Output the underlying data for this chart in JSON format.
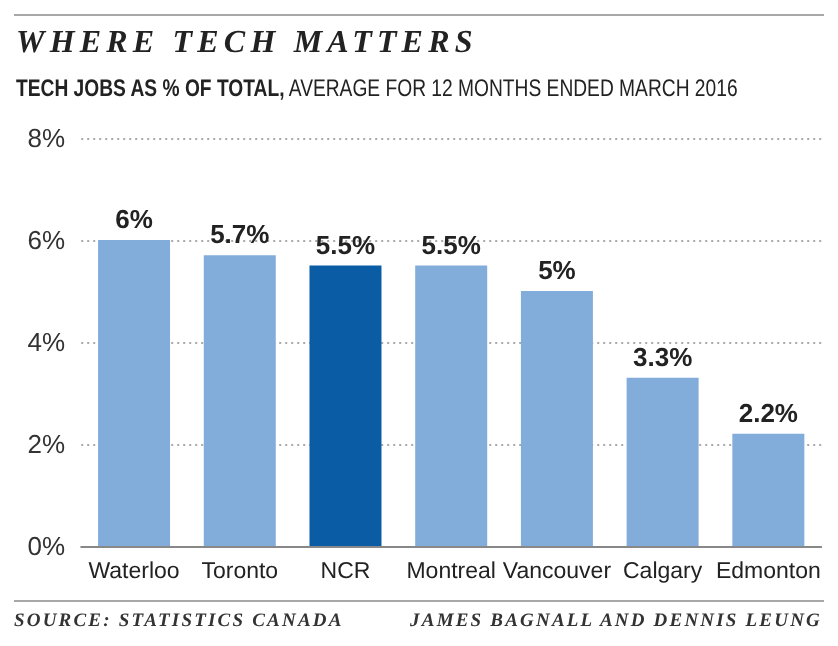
{
  "chart_data": {
    "type": "bar",
    "title": "WHERE TECH MATTERS",
    "subtitle": "TECH JOBS AS % OF TOTAL, AVERAGE FOR 12 MONTHS ENDED MARCH 2016",
    "categories": [
      "Waterloo",
      "Toronto",
      "NCR",
      "Montreal",
      "Vancouver",
      "Calgary",
      "Edmonton"
    ],
    "values": [
      6,
      5.7,
      5.5,
      5.5,
      5,
      3.3,
      2.2
    ],
    "colors": [
      "#82acda",
      "#82acda",
      "#0a5da5",
      "#82acda",
      "#82acda",
      "#82acda",
      "#82acda"
    ],
    "value_labels": [
      "6%",
      "5.7%",
      "5.5%",
      "5.5%",
      "5%",
      "3.3%",
      "2.2%"
    ],
    "ylim": [
      0,
      8
    ],
    "yticks": [
      {
        "value": 0,
        "label": "0%"
      },
      {
        "value": 2,
        "label": "2%"
      },
      {
        "value": 4,
        "label": "4%"
      },
      {
        "value": 6,
        "label": "6%"
      },
      {
        "value": 8,
        "label": "8%"
      }
    ],
    "grid": "y",
    "annotations": [
      "SOURCE: STATISTICS CANADA",
      "JAMES BAGNALL AND DENNIS LEUNG"
    ]
  }
}
